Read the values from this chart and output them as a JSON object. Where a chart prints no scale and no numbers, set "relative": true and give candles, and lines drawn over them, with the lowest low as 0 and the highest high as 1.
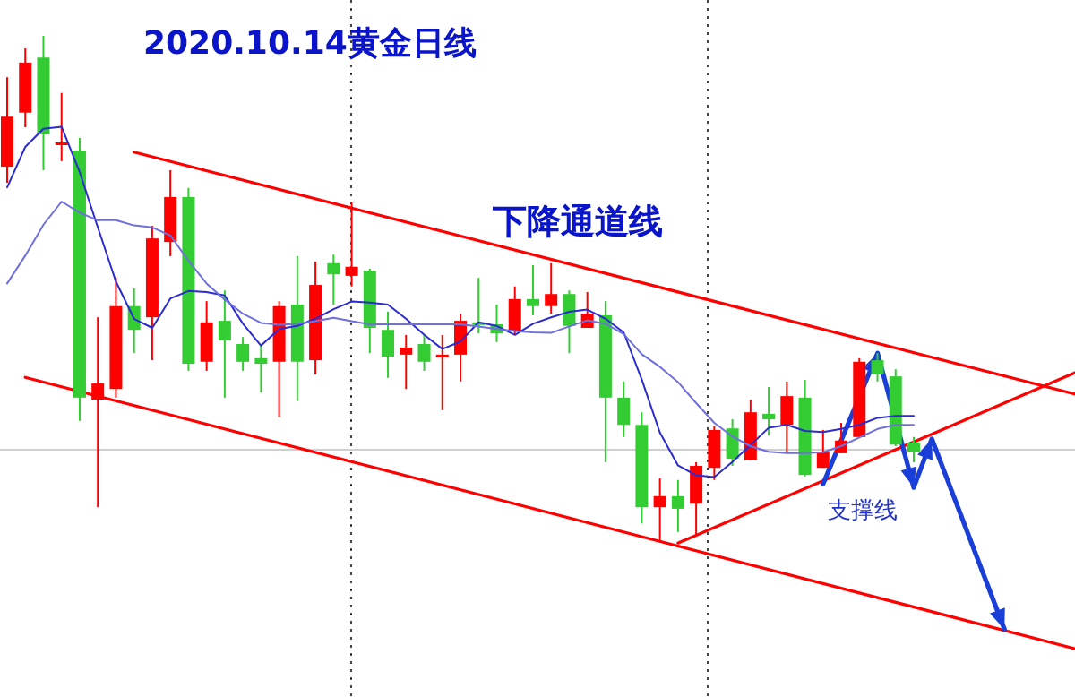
{
  "chart_data": {
    "type": "candlestick",
    "title": "2020.10.14黄金日线",
    "relative": true,
    "categories": [
      null,
      null,
      null,
      null,
      null,
      null,
      null,
      null,
      null,
      null,
      null,
      null,
      null,
      null,
      null,
      null,
      null,
      null,
      null,
      null,
      null,
      null,
      null,
      null,
      null,
      null,
      null,
      null,
      null,
      null,
      null,
      null,
      null,
      null,
      null,
      null,
      null,
      null,
      null,
      null,
      null,
      null,
      null,
      null,
      null,
      null,
      null,
      null,
      null,
      null,
      null,
      null,
      null,
      null,
      null,
      null,
      null,
      null,
      null,
      null
    ],
    "ohlc": [
      [
        0.741,
        0.918,
        0.709,
        0.84
      ],
      [
        0.848,
        0.975,
        0.819,
        0.947
      ],
      [
        0.957,
        1.0,
        0.734,
        0.805
      ],
      [
        0.785,
        0.887,
        0.752,
        0.789
      ],
      [
        0.773,
        0.798,
        0.238,
        0.284
      ],
      [
        0.28,
        0.443,
        0.067,
        0.312
      ],
      [
        0.301,
        0.521,
        0.284,
        0.465
      ],
      [
        0.465,
        0.5,
        0.372,
        0.418
      ],
      [
        0.443,
        0.624,
        0.358,
        0.599
      ],
      [
        0.592,
        0.734,
        0.564,
        0.681
      ],
      [
        0.681,
        0.699,
        0.337,
        0.351
      ],
      [
        0.355,
        0.475,
        0.337,
        0.433
      ],
      [
        0.436,
        0.496,
        0.284,
        0.397
      ],
      [
        0.39,
        0.404,
        0.337,
        0.355
      ],
      [
        0.362,
        0.39,
        0.294,
        0.351
      ],
      [
        0.355,
        0.475,
        0.245,
        0.465
      ],
      [
        0.468,
        0.564,
        0.277,
        0.355
      ],
      [
        0.358,
        0.553,
        0.33,
        0.507
      ],
      [
        0.55,
        0.567,
        0.468,
        0.528
      ],
      [
        0.525,
        0.67,
        0.504,
        0.543
      ],
      [
        0.535,
        0.539,
        0.372,
        0.422
      ],
      [
        0.418,
        0.454,
        0.323,
        0.365
      ],
      [
        0.369,
        0.408,
        0.301,
        0.383
      ],
      [
        0.39,
        0.408,
        0.337,
        0.355
      ],
      [
        0.365,
        0.408,
        0.259,
        0.369
      ],
      [
        0.369,
        0.45,
        0.316,
        0.436
      ],
      [
        0.433,
        0.521,
        0.411,
        0.429
      ],
      [
        0.429,
        0.468,
        0.394,
        0.411
      ],
      [
        0.415,
        0.504,
        0.408,
        0.479
      ],
      [
        0.479,
        0.546,
        0.447,
        0.465
      ],
      [
        0.465,
        0.55,
        0.45,
        0.489
      ],
      [
        0.489,
        0.496,
        0.372,
        0.426
      ],
      [
        0.422,
        0.493,
        0.422,
        0.45
      ],
      [
        0.447,
        0.475,
        0.156,
        0.284
      ],
      [
        0.284,
        0.316,
        0.206,
        0.23
      ],
      [
        0.23,
        0.255,
        0.035,
        0.067
      ],
      [
        0.067,
        0.124,
        0.0,
        0.089
      ],
      [
        0.089,
        0.121,
        0.018,
        0.064
      ],
      [
        0.074,
        0.156,
        0.011,
        0.149
      ],
      [
        0.145,
        0.227,
        0.121,
        0.22
      ],
      [
        0.223,
        0.241,
        0.149,
        0.163
      ],
      [
        0.16,
        0.28,
        0.16,
        0.255
      ],
      [
        0.252,
        0.305,
        0.209,
        0.241
      ],
      [
        0.23,
        0.316,
        0.177,
        0.287
      ],
      [
        0.284,
        0.319,
        0.128,
        0.131
      ],
      [
        0.145,
        0.22,
        0.145,
        0.177
      ],
      [
        0.174,
        0.234,
        0.174,
        0.199
      ],
      [
        0.206,
        0.362,
        0.206,
        0.355
      ],
      [
        0.358,
        0.372,
        0.316,
        0.33
      ],
      [
        0.326,
        0.34,
        0.188,
        0.191
      ],
      [
        0.195,
        0.206,
        0.156,
        0.177
      ],
      null,
      null,
      null,
      null,
      null,
      null,
      null,
      null,
      null
    ],
    "colors": [
      "#ff0000",
      "#ff0000",
      "#33cc33",
      "#ff0000",
      "#33cc33",
      "#ff0000",
      "#ff0000",
      "#33cc33",
      "#ff0000",
      "#ff0000",
      "#33cc33",
      "#ff0000",
      "#33cc33",
      "#33cc33",
      "#33cc33",
      "#ff0000",
      "#33cc33",
      "#ff0000",
      "#33cc33",
      "#ff0000",
      "#33cc33",
      "#33cc33",
      "#ff0000",
      "#33cc33",
      "#ff0000",
      "#ff0000",
      "#33cc33",
      "#33cc33",
      "#ff0000",
      "#33cc33",
      "#ff0000",
      "#33cc33",
      "#ff0000",
      "#33cc33",
      "#33cc33",
      "#33cc33",
      "#ff0000",
      "#33cc33",
      "#ff0000",
      "#ff0000",
      "#33cc33",
      "#ff0000",
      "#33cc33",
      "#ff0000",
      "#33cc33",
      "#ff0000",
      "#ff0000",
      "#ff0000",
      "#33cc33",
      "#33cc33",
      "#33cc33",
      null,
      null,
      null,
      null,
      null,
      null,
      null,
      null,
      null
    ],
    "series": [
      {
        "type": "line",
        "color": "#2b2bd1",
        "values": [
          0.7,
          0.78,
          0.816,
          0.82,
          0.73,
          0.621,
          0.514,
          0.44,
          0.422,
          0.48,
          0.495,
          0.493,
          0.486,
          0.43,
          0.387,
          0.42,
          0.426,
          0.44,
          0.459,
          0.474,
          0.472,
          0.468,
          0.44,
          0.408,
          0.38,
          0.395,
          0.433,
          0.426,
          0.408,
          0.43,
          0.443,
          0.454,
          0.458,
          0.44,
          0.413,
          0.32,
          0.215,
          0.15,
          0.13,
          0.127,
          0.157,
          0.19,
          0.224,
          0.23,
          0.218,
          0.216,
          0.222,
          0.23,
          0.244,
          0.248,
          0.248,
          null,
          null,
          null,
          null,
          null,
          null,
          null,
          null,
          null
        ]
      },
      {
        "type": "line",
        "color": "#6f6fe0",
        "values": [
          0.51,
          0.565,
          0.626,
          0.672,
          0.65,
          0.635,
          0.635,
          0.625,
          0.621,
          0.605,
          0.555,
          0.51,
          0.478,
          0.45,
          0.432,
          0.428,
          0.43,
          0.435,
          0.442,
          0.435,
          0.429,
          0.429,
          0.429,
          0.429,
          0.429,
          0.429,
          0.425,
          0.42,
          0.416,
          0.413,
          0.412,
          0.425,
          0.437,
          0.43,
          0.41,
          0.37,
          0.345,
          0.315,
          0.273,
          0.234,
          0.207,
          0.188,
          0.177,
          0.174,
          0.174,
          0.176,
          0.188,
          0.205,
          0.222,
          0.23,
          0.23,
          null,
          null,
          null,
          null,
          null,
          null,
          null,
          null,
          null
        ]
      },
      {
        "type": "line",
        "color": "#ff0000",
        "values": [
          null,
          null,
          null,
          null,
          null,
          null,
          null,
          0.77,
          null,
          null,
          null,
          null,
          null,
          null,
          null,
          null,
          null,
          null,
          null,
          null,
          null,
          null,
          null,
          null,
          null,
          null,
          null,
          null,
          null,
          null,
          null,
          null,
          null,
          null,
          null,
          null,
          null,
          null,
          null,
          null,
          null,
          null,
          null,
          null,
          null,
          null,
          null,
          null,
          null,
          null,
          null,
          null,
          null,
          null,
          null,
          null,
          null,
          null,
          null,
          0.29
        ]
      },
      {
        "type": "line",
        "color": "#ff0000",
        "values": [
          null,
          0.324,
          null,
          null,
          null,
          null,
          null,
          null,
          null,
          null,
          null,
          null,
          null,
          null,
          null,
          null,
          null,
          null,
          null,
          null,
          null,
          null,
          null,
          null,
          null,
          null,
          null,
          null,
          null,
          null,
          null,
          null,
          null,
          null,
          null,
          null,
          null,
          null,
          null,
          null,
          null,
          null,
          null,
          null,
          null,
          null,
          null,
          null,
          null,
          null,
          null,
          null,
          null,
          null,
          null,
          null,
          null,
          null,
          null,
          -0.214
        ]
      },
      {
        "type": "line",
        "color": "#ff0000",
        "values": [
          null,
          null,
          null,
          null,
          null,
          null,
          null,
          null,
          null,
          null,
          null,
          null,
          null,
          null,
          null,
          null,
          null,
          null,
          null,
          null,
          null,
          null,
          null,
          null,
          null,
          null,
          null,
          null,
          null,
          null,
          null,
          null,
          null,
          null,
          null,
          null,
          null,
          -0.004,
          null,
          null,
          null,
          null,
          null,
          null,
          null,
          null,
          null,
          null,
          null,
          null,
          null,
          null,
          null,
          null,
          null,
          null,
          null,
          null,
          null,
          0.335
        ]
      },
      {
        "type": "line",
        "color": "#1a3fd9",
        "values": [
          null,
          null,
          null,
          null,
          null,
          null,
          null,
          null,
          null,
          null,
          null,
          null,
          null,
          null,
          null,
          null,
          null,
          null,
          null,
          null,
          null,
          null,
          null,
          null,
          null,
          null,
          null,
          null,
          null,
          null,
          null,
          null,
          null,
          null,
          null,
          null,
          null,
          null,
          null,
          null,
          null,
          null,
          null,
          null,
          null,
          0.113,
          null,
          null,
          0.372,
          null,
          0.106,
          0.202,
          null,
          null,
          null,
          -0.174,
          null,
          null,
          null,
          null
        ]
      }
    ],
    "ref_lines": [
      {
        "axis": "y",
        "value": 0.181,
        "color": "#cfcfcf"
      }
    ],
    "annotations": [
      "下降通道线",
      "支撑线"
    ]
  }
}
